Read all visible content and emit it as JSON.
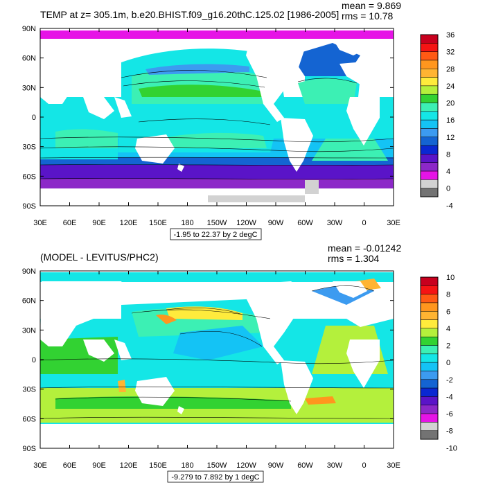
{
  "panels": [
    {
      "title": "TEMP at z= 305.1m, b.e20.BHIST.f09_g16.20thC.125.02 [1986-2005]",
      "mean": "mean = 9.869",
      "rms": "rms = 10.78",
      "range_note": "-1.95 to 22.37 by 2 degC",
      "colorbar": {
        "labels": [
          "36",
          "32",
          "28",
          "24",
          "20",
          "16",
          "12",
          "8",
          "4",
          "0",
          "-4"
        ],
        "colors": [
          "#c8001e",
          "#f51414",
          "#ff5a14",
          "#ff961e",
          "#ffb432",
          "#ffeb3c",
          "#b4f03c",
          "#32d232",
          "#3cf0b4",
          "#14e6e6",
          "#14c3f5",
          "#3c9bf0",
          "#1464d2",
          "#0a28d2",
          "#5a14c8",
          "#8c28c8",
          "#e614e6",
          "#d2d2d2",
          "#737373"
        ]
      }
    },
    {
      "title": "(MODEL - LEVITUS/PHC2)",
      "mean": "mean = -0.01242",
      "rms": "rms = 1.304",
      "range_note": "-9.279 to 7.892 by 1 degC",
      "colorbar": {
        "labels": [
          "10",
          "8",
          "6",
          "4",
          "2",
          "0",
          "-2",
          "-4",
          "-6",
          "-8",
          "-10"
        ],
        "colors": [
          "#c8001e",
          "#f51414",
          "#ff5a14",
          "#ff961e",
          "#ffb432",
          "#ffeb3c",
          "#b4f03c",
          "#32d232",
          "#3cf0b4",
          "#14e6e6",
          "#14c3f5",
          "#3c9bf0",
          "#1464d2",
          "#0a28d2",
          "#5a14c8",
          "#8c28c8",
          "#e614e6",
          "#d2d2d2",
          "#737373"
        ]
      }
    }
  ],
  "lat_labels": [
    "90N",
    "60N",
    "30N",
    "0",
    "30S",
    "60S",
    "90S"
  ],
  "lon_labels": [
    "30E",
    "60E",
    "90E",
    "120E",
    "150E",
    "180",
    "150W",
    "120W",
    "90W",
    "60W",
    "30W",
    "0",
    "30E"
  ],
  "map_palette": {
    "land": "#ffffff",
    "upper": {
      "arctic": "#e614e6",
      "north_pacific": "#3cf0b4",
      "tropics": "#14c3f5",
      "subtropic_gyre": "#14e6e6",
      "warm": "#32d232",
      "cool": "#3c9bf0",
      "southern": "#1464d2",
      "south_ocean": "#5a14c8",
      "antarctic": "#e614e6"
    },
    "lower": {
      "base": "#14e6e6",
      "pos": "#b4f03c",
      "neg": "#14c3f5",
      "hot": "#ffb432",
      "cold": "#3c9bf0"
    }
  }
}
